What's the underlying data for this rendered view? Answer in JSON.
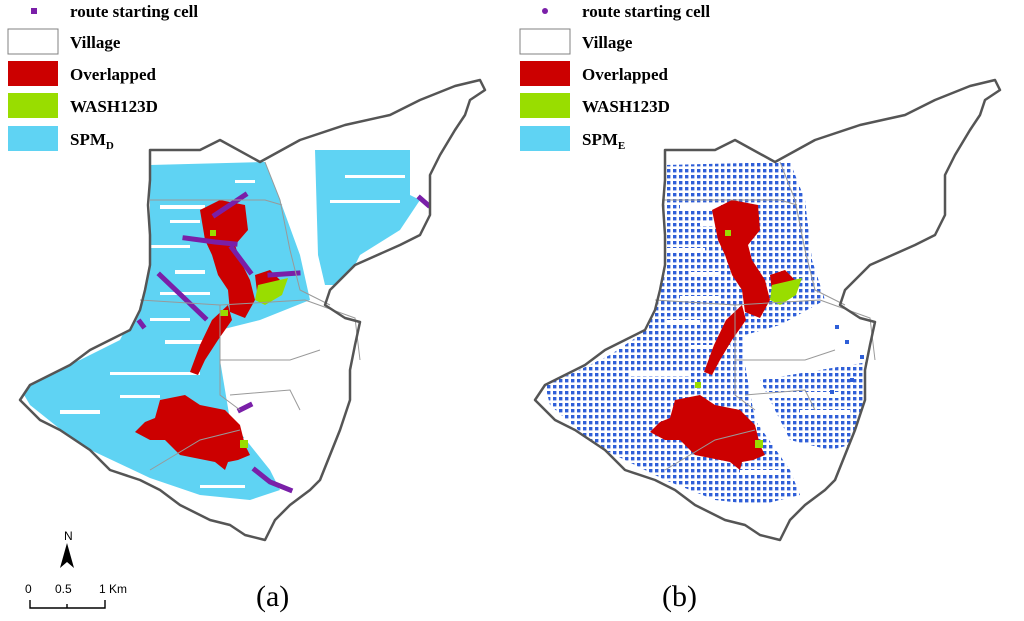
{
  "panels": [
    {
      "caption": "(a)",
      "legend": [
        {
          "label": "route starting cell",
          "marker": "square",
          "color": "#7a1fa8"
        },
        {
          "label": "Village",
          "color": "#ffffff",
          "stroke": "#808080"
        },
        {
          "label": "Overlapped",
          "color": "#cc0000"
        },
        {
          "label": "WASH123D",
          "color": "#99dd00"
        },
        {
          "label": "SPM",
          "subscript": "D",
          "color": "#5fd3f3"
        }
      ]
    },
    {
      "caption": "(b)",
      "legend": [
        {
          "label": "route starting cell",
          "marker": "dot",
          "color": "#7a1fa8"
        },
        {
          "label": "Village",
          "color": "#ffffff",
          "stroke": "#808080"
        },
        {
          "label": "Overlapped",
          "color": "#cc0000"
        },
        {
          "label": "WASH123D",
          "color": "#99dd00"
        },
        {
          "label": "SPM",
          "subscript": "E",
          "color": "#5fd3f3"
        }
      ]
    }
  ],
  "scale_bar": {
    "ticks": [
      "0",
      "0.5",
      "1 Km"
    ]
  },
  "north_arrow": {
    "label": "N"
  },
  "colors": {
    "boundary": "#555555",
    "village_lines": "#999999",
    "spm_cells": "#2f5fd8"
  }
}
